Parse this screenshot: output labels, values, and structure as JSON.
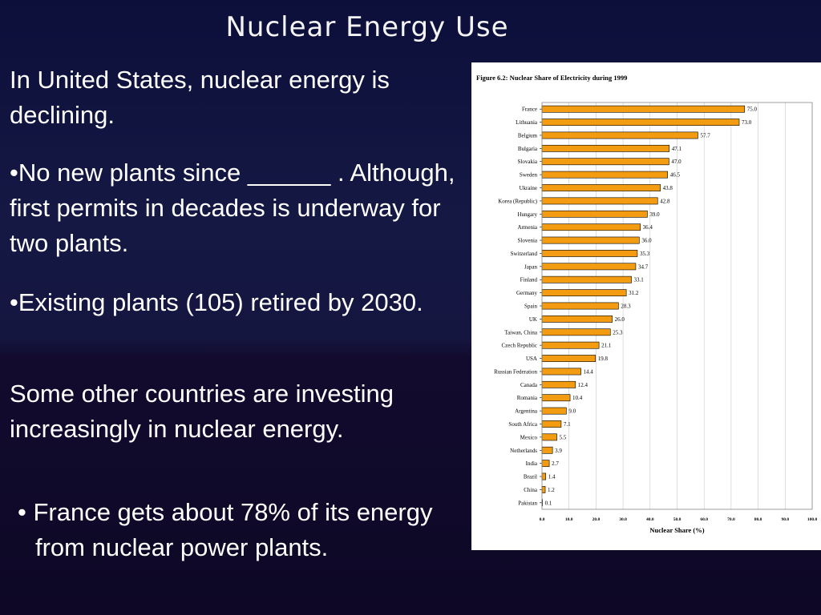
{
  "slide": {
    "title": "Nuclear Energy   Use",
    "para1": "In United States, nuclear energy is declining.",
    "bullet1": "•No new plants since  ______ . Although, first permits in decades is underway for two plants.",
    "bullet2": "•Existing plants (105) retired by 2030.",
    "para2": "Some other countries are investing increasingly in nuclear energy.",
    "bullet3": "• France gets about 78% of its energy from nuclear power plants."
  },
  "chart_data": {
    "type": "bar",
    "orientation": "horizontal",
    "title": "Figure 6.2: Nuclear Share of Electricity during 1999",
    "xlabel": "Nuclear Share (%)",
    "ylabel": "",
    "xlim": [
      0,
      100
    ],
    "xticks": [
      "0.0",
      "10.0",
      "20.0",
      "30.0",
      "40.0",
      "50.0",
      "60.0",
      "70.0",
      "80.0",
      "90.0",
      "100.0"
    ],
    "categories": [
      "France",
      "Lithuania",
      "Belgium",
      "Bulgaria",
      "Slovakia",
      "Sweden",
      "Ukraine",
      "Korea (Republic)",
      "Hungary",
      "Armenia",
      "Slovenia",
      "Switzerland",
      "Japan",
      "Finland",
      "Germany",
      "Spain",
      "UK",
      "Taiwan, China",
      "Czech Republic",
      "USA",
      "Russian Federation",
      "Canada",
      "Romania",
      "Argentina",
      "South Africa",
      "Mexico",
      "Netherlands",
      "India",
      "Brazil",
      "China",
      "Pakistan"
    ],
    "values": [
      75.0,
      73.0,
      57.7,
      47.1,
      47.0,
      46.5,
      43.8,
      42.8,
      39.0,
      36.4,
      36.0,
      35.3,
      34.7,
      33.1,
      31.2,
      28.3,
      26.0,
      25.3,
      21.1,
      19.8,
      14.4,
      12.4,
      10.4,
      9.0,
      7.1,
      5.5,
      3.9,
      2.7,
      1.4,
      1.2,
      0.1
    ],
    "value_labels": [
      "75.0",
      "73.0",
      "57.7",
      "47.1",
      "47.0",
      "46.5",
      "43.8",
      "42.8",
      "39.0",
      "36.4",
      "36.0",
      "35.3",
      "34.7",
      "33.1",
      "31.2",
      "28.3",
      "26.0",
      "25.3",
      "21.1",
      "19.8",
      "14.4",
      "12.4",
      "10.4",
      "9.0",
      "7.1",
      "5.5",
      "3.9",
      "2.7",
      "1.4",
      "1.2",
      "0.1"
    ],
    "bar_color": "#f39c12",
    "grid": "vertical"
  }
}
